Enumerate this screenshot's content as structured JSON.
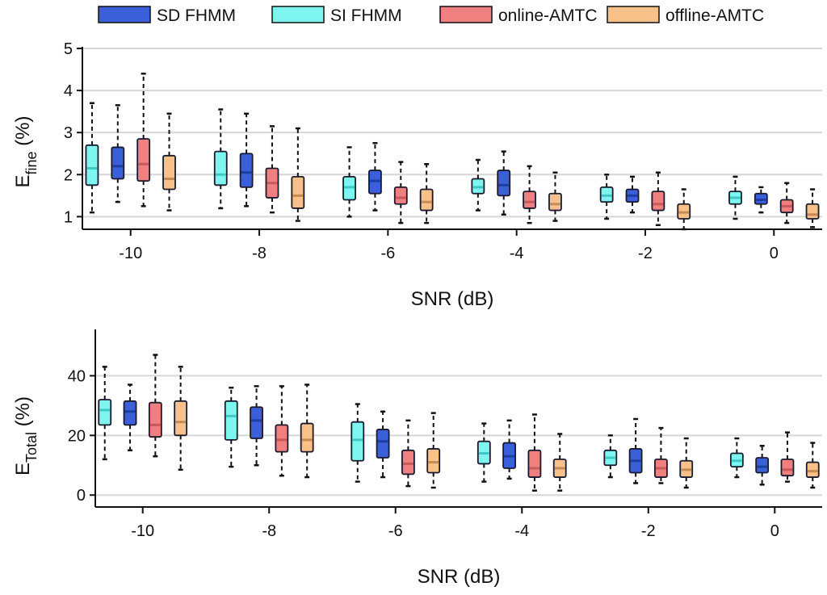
{
  "legend": [
    {
      "name": "SD FHMM",
      "color": "#3b5fd9",
      "median_color": "#1f3da0"
    },
    {
      "name": "SI FHMM",
      "color": "#7ff5f0",
      "median_color": "#3fc9c6"
    },
    {
      "name": "online-AMTC",
      "color": "#f08080",
      "median_color": "#c45a5a"
    },
    {
      "name": "offline-AMTC",
      "color": "#f7c189",
      "median_color": "#c48b52"
    }
  ],
  "chart_data": [
    {
      "type": "box",
      "ylabel_main": "E",
      "ylabel_sub": "fine",
      "ylabel_unit": " (%)",
      "xlabel": "SNR (dB)",
      "ylim": [
        0.7,
        5
      ],
      "yticks": [
        1,
        2,
        3,
        4,
        5
      ],
      "xlim": [
        -10.75,
        0.75
      ],
      "xticks": [
        -10,
        -8,
        -6,
        -4,
        -2,
        0
      ],
      "grid": true,
      "groups": [
        {
          "snr": -10,
          "boxes": [
            {
              "series": "SI FHMM",
              "whisker_low": 1.1,
              "q1": 1.75,
              "median": 2.15,
              "q3": 2.7,
              "whisker_high": 3.7
            },
            {
              "series": "SD FHMM",
              "whisker_low": 1.35,
              "q1": 1.9,
              "median": 2.2,
              "q3": 2.65,
              "whisker_high": 3.65
            },
            {
              "series": "online-AMTC",
              "whisker_low": 1.25,
              "q1": 1.85,
              "median": 2.25,
              "q3": 2.85,
              "whisker_high": 4.4
            },
            {
              "series": "offline-AMTC",
              "whisker_low": 1.15,
              "q1": 1.65,
              "median": 1.9,
              "q3": 2.45,
              "whisker_high": 3.45
            }
          ]
        },
        {
          "snr": -8,
          "boxes": [
            {
              "series": "SI FHMM",
              "whisker_low": 1.2,
              "q1": 1.75,
              "median": 2.0,
              "q3": 2.55,
              "whisker_high": 3.55
            },
            {
              "series": "SD FHMM",
              "whisker_low": 1.25,
              "q1": 1.7,
              "median": 2.05,
              "q3": 2.5,
              "whisker_high": 3.45
            },
            {
              "series": "online-AMTC",
              "whisker_low": 1.1,
              "q1": 1.45,
              "median": 1.8,
              "q3": 2.15,
              "whisker_high": 3.15
            },
            {
              "series": "offline-AMTC",
              "whisker_low": 0.9,
              "q1": 1.2,
              "median": 1.5,
              "q3": 1.95,
              "whisker_high": 3.1
            }
          ]
        },
        {
          "snr": -6,
          "boxes": [
            {
              "series": "SI FHMM",
              "whisker_low": 1.0,
              "q1": 1.4,
              "median": 1.7,
              "q3": 1.95,
              "whisker_high": 2.65
            },
            {
              "series": "SD FHMM",
              "whisker_low": 1.15,
              "q1": 1.55,
              "median": 1.85,
              "q3": 2.1,
              "whisker_high": 2.75
            },
            {
              "series": "online-AMTC",
              "whisker_low": 0.85,
              "q1": 1.3,
              "median": 1.45,
              "q3": 1.7,
              "whisker_high": 2.3
            },
            {
              "series": "offline-AMTC",
              "whisker_low": 0.85,
              "q1": 1.15,
              "median": 1.35,
              "q3": 1.65,
              "whisker_high": 2.25
            }
          ]
        },
        {
          "snr": -4,
          "boxes": [
            {
              "series": "SI FHMM",
              "whisker_low": 1.15,
              "q1": 1.55,
              "median": 1.7,
              "q3": 1.9,
              "whisker_high": 2.35
            },
            {
              "series": "SD FHMM",
              "whisker_low": 1.05,
              "q1": 1.5,
              "median": 1.75,
              "q3": 2.1,
              "whisker_high": 2.55
            },
            {
              "series": "online-AMTC",
              "whisker_low": 0.85,
              "q1": 1.2,
              "median": 1.35,
              "q3": 1.6,
              "whisker_high": 2.2
            },
            {
              "series": "offline-AMTC",
              "whisker_low": 0.9,
              "q1": 1.15,
              "median": 1.3,
              "q3": 1.55,
              "whisker_high": 2.05
            }
          ]
        },
        {
          "snr": -2,
          "boxes": [
            {
              "series": "SI FHMM",
              "whisker_low": 0.95,
              "q1": 1.35,
              "median": 1.5,
              "q3": 1.7,
              "whisker_high": 2.0
            },
            {
              "series": "SD FHMM",
              "whisker_low": 1.1,
              "q1": 1.35,
              "median": 1.5,
              "q3": 1.65,
              "whisker_high": 1.95
            },
            {
              "series": "online-AMTC",
              "whisker_low": 0.8,
              "q1": 1.15,
              "median": 1.3,
              "q3": 1.6,
              "whisker_high": 2.05
            },
            {
              "series": "offline-AMTC",
              "whisker_low": 0.7,
              "q1": 0.95,
              "median": 1.1,
              "q3": 1.3,
              "whisker_high": 1.65
            }
          ]
        },
        {
          "snr": 0,
          "boxes": [
            {
              "series": "SI FHMM",
              "whisker_low": 0.95,
              "q1": 1.3,
              "median": 1.45,
              "q3": 1.6,
              "whisker_high": 1.95
            },
            {
              "series": "SD FHMM",
              "whisker_low": 1.1,
              "q1": 1.3,
              "median": 1.4,
              "q3": 1.55,
              "whisker_high": 1.7
            },
            {
              "series": "online-AMTC",
              "whisker_low": 0.85,
              "q1": 1.1,
              "median": 1.25,
              "q3": 1.4,
              "whisker_high": 1.8
            },
            {
              "series": "offline-AMTC",
              "whisker_low": 0.75,
              "q1": 0.95,
              "median": 1.05,
              "q3": 1.3,
              "whisker_high": 1.65
            }
          ]
        }
      ]
    },
    {
      "type": "box",
      "ylabel_main": "E",
      "ylabel_sub": "Total",
      "ylabel_unit": " (%)",
      "xlabel": "SNR (dB)",
      "ylim": [
        -4,
        55
      ],
      "yticks": [
        0,
        20,
        40
      ],
      "xlim": [
        -10.75,
        0.75
      ],
      "xticks": [
        -10,
        -8,
        -6,
        -4,
        -2,
        0
      ],
      "grid": true,
      "groups": [
        {
          "snr": -10,
          "boxes": [
            {
              "series": "SI FHMM",
              "whisker_low": 12,
              "q1": 23.5,
              "median": 28.5,
              "q3": 32,
              "whisker_high": 43
            },
            {
              "series": "SD FHMM",
              "whisker_low": 15,
              "q1": 23.5,
              "median": 28,
              "q3": 31.5,
              "whisker_high": 37
            },
            {
              "series": "online-AMTC",
              "whisker_low": 13,
              "q1": 19.5,
              "median": 23.5,
              "q3": 31,
              "whisker_high": 47
            },
            {
              "series": "offline-AMTC",
              "whisker_low": 8.5,
              "q1": 20,
              "median": 24.5,
              "q3": 31.5,
              "whisker_high": 43
            }
          ]
        },
        {
          "snr": -8,
          "boxes": [
            {
              "series": "SI FHMM",
              "whisker_low": 9.5,
              "q1": 18.5,
              "median": 26.5,
              "q3": 31.5,
              "whisker_high": 36
            },
            {
              "series": "SD FHMM",
              "whisker_low": 10,
              "q1": 19,
              "median": 25,
              "q3": 29.5,
              "whisker_high": 36.5
            },
            {
              "series": "online-AMTC",
              "whisker_low": 6.5,
              "q1": 14.5,
              "median": 18.5,
              "q3": 23.5,
              "whisker_high": 36.5
            },
            {
              "series": "offline-AMTC",
              "whisker_low": 6,
              "q1": 14.5,
              "median": 18.5,
              "q3": 24,
              "whisker_high": 37
            }
          ]
        },
        {
          "snr": -6,
          "boxes": [
            {
              "series": "SI FHMM",
              "whisker_low": 4.5,
              "q1": 11.5,
              "median": 18.5,
              "q3": 24.5,
              "whisker_high": 30.5
            },
            {
              "series": "SD FHMM",
              "whisker_low": 6,
              "q1": 12.5,
              "median": 18,
              "q3": 22,
              "whisker_high": 28
            },
            {
              "series": "online-AMTC",
              "whisker_low": 3,
              "q1": 7,
              "median": 10.5,
              "q3": 15,
              "whisker_high": 25
            },
            {
              "series": "offline-AMTC",
              "whisker_low": 2.5,
              "q1": 7.5,
              "median": 11,
              "q3": 15.5,
              "whisker_high": 27.5
            }
          ]
        },
        {
          "snr": -4,
          "boxes": [
            {
              "series": "SI FHMM",
              "whisker_low": 4.5,
              "q1": 10.5,
              "median": 14,
              "q3": 18,
              "whisker_high": 24
            },
            {
              "series": "SD FHMM",
              "whisker_low": 5.5,
              "q1": 9,
              "median": 13,
              "q3": 17.5,
              "whisker_high": 25
            },
            {
              "series": "online-AMTC",
              "whisker_low": 1.5,
              "q1": 6,
              "median": 9,
              "q3": 15,
              "whisker_high": 27
            },
            {
              "series": "offline-AMTC",
              "whisker_low": 1.5,
              "q1": 6,
              "median": 9,
              "q3": 12,
              "whisker_high": 20.5
            }
          ]
        },
        {
          "snr": -2,
          "boxes": [
            {
              "series": "SI FHMM",
              "whisker_low": 6,
              "q1": 10,
              "median": 12.5,
              "q3": 15,
              "whisker_high": 20
            },
            {
              "series": "SD FHMM",
              "whisker_low": 4,
              "q1": 7.5,
              "median": 11.5,
              "q3": 15.5,
              "whisker_high": 25.5
            },
            {
              "series": "online-AMTC",
              "whisker_low": 4,
              "q1": 6,
              "median": 9,
              "q3": 12,
              "whisker_high": 22.5
            },
            {
              "series": "offline-AMTC",
              "whisker_low": 2.5,
              "q1": 6,
              "median": 8.5,
              "q3": 11.5,
              "whisker_high": 19
            }
          ]
        },
        {
          "snr": 0,
          "boxes": [
            {
              "series": "SI FHMM",
              "whisker_low": 6,
              "q1": 9.5,
              "median": 11.5,
              "q3": 14,
              "whisker_high": 19
            },
            {
              "series": "SD FHMM",
              "whisker_low": 3.5,
              "q1": 7.5,
              "median": 9.5,
              "q3": 12.5,
              "whisker_high": 16.5
            },
            {
              "series": "online-AMTC",
              "whisker_low": 4.5,
              "q1": 6.5,
              "median": 8.5,
              "q3": 12,
              "whisker_high": 21
            },
            {
              "series": "offline-AMTC",
              "whisker_low": 2.5,
              "q1": 6,
              "median": 8,
              "q3": 11,
              "whisker_high": 17.5
            }
          ]
        }
      ]
    }
  ]
}
